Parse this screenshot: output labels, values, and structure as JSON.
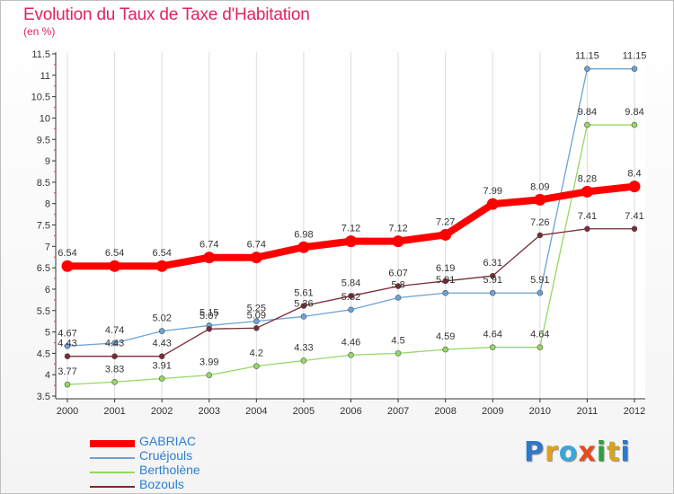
{
  "title": "Evolution du Taux de Taxe d'Habitation",
  "subtitle": "(en %)",
  "brand": {
    "text": "Proxiti",
    "letter_colors": [
      "#2f77c9",
      "#e2a11b",
      "#3aa6d9",
      "#e84b1b",
      "#2f9e3e",
      "#d8a419",
      "#2f77c9"
    ]
  },
  "chart_data": {
    "type": "line",
    "x": [
      "2000",
      "2001",
      "2002",
      "2003",
      "2004",
      "2005",
      "2006",
      "2007",
      "2008",
      "2009",
      "2010",
      "2011",
      "2012"
    ],
    "ylim": [
      3.5,
      11.5
    ],
    "yticks": [
      "3.5",
      "4",
      "4.5",
      "5",
      "5.5",
      "6",
      "6.5",
      "7",
      "7.5",
      "8",
      "8.5",
      "9",
      "9.5",
      "10",
      "10.5",
      "11",
      "11.5"
    ],
    "grid": "vertical",
    "legend_position": "bottom-left",
    "series": [
      {
        "name": "GABRIAC",
        "color": "#ff0000",
        "values": [
          6.54,
          6.54,
          6.54,
          6.74,
          6.74,
          6.98,
          7.12,
          7.12,
          7.27,
          7.99,
          8.09,
          8.28,
          8.4
        ],
        "labels": [
          "6.54",
          "6.54",
          "6.54",
          "6.74",
          "6.74",
          "6.98",
          "7.12",
          "7.12",
          "7.27",
          "7.99",
          "8.09",
          "8.28",
          "8.4"
        ]
      },
      {
        "name": "Cruéjouls",
        "color": "#6aa3d4",
        "values": [
          4.67,
          4.74,
          5.02,
          5.15,
          5.25,
          5.36,
          5.52,
          5.8,
          5.91,
          5.91,
          5.91,
          11.15,
          11.15
        ],
        "labels": [
          "4.67",
          "4.74",
          "5.02",
          "5.15",
          "5.25",
          "5.36",
          "5.52",
          "5.8",
          "5.91",
          "5.91",
          "5.91",
          "11.15",
          "11.15"
        ]
      },
      {
        "name": "Bertholène",
        "color": "#93d962",
        "values": [
          3.77,
          3.83,
          3.91,
          3.99,
          4.2,
          4.33,
          4.46,
          4.5,
          4.59,
          4.64,
          4.64,
          9.84,
          9.84
        ],
        "labels": [
          "3.77",
          "3.83",
          "3.91",
          "3.99",
          "4.2",
          "4.33",
          "4.46",
          "4.5",
          "4.59",
          "4.64",
          "4.64",
          "9.84",
          "9.84"
        ]
      },
      {
        "name": "Bozouls",
        "color": "#7a2a33",
        "values": [
          4.43,
          4.43,
          4.43,
          5.07,
          5.09,
          5.61,
          5.84,
          6.07,
          6.19,
          6.31,
          7.26,
          7.41,
          7.41
        ],
        "labels": [
          "4.43",
          "4.43",
          "4.43",
          "5.07",
          "5.09",
          "5.61",
          "5.84",
          "6.07",
          "6.19",
          "6.31",
          "7.26",
          "7.41",
          "7.41"
        ]
      }
    ]
  }
}
